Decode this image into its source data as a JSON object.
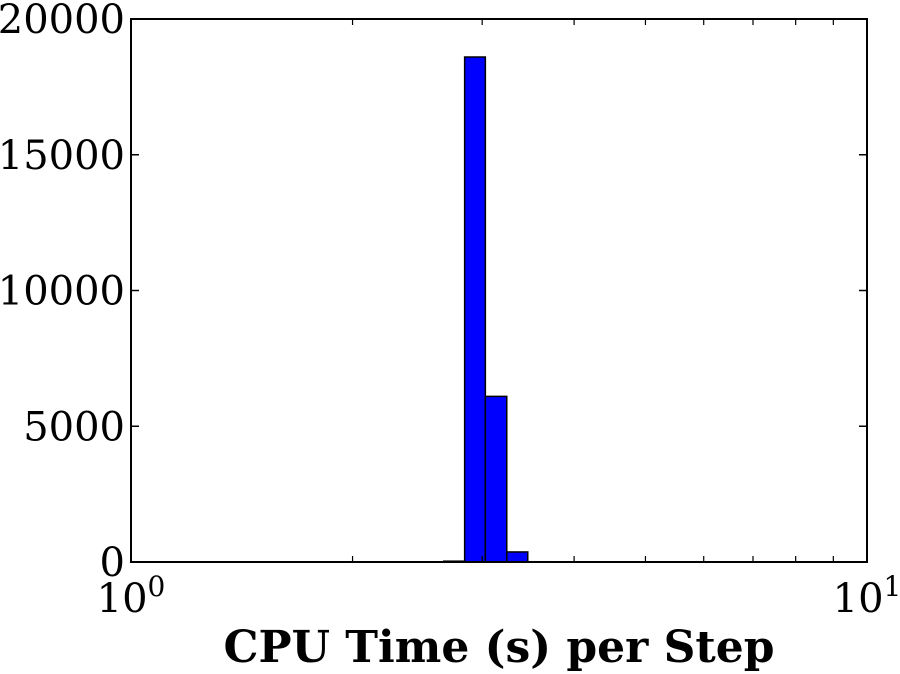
{
  "chart_data": {
    "type": "bar",
    "subtype": "histogram",
    "xlabel": "CPU Time (s) per Step",
    "ylabel": "",
    "x_scale": "log",
    "xlim": [
      1,
      10
    ],
    "ylim": [
      0,
      20000
    ],
    "bar_color": "#0000ff",
    "edge_color": "#000000",
    "grid": false,
    "bins": [
      {
        "x0": 2.66,
        "x1": 2.84,
        "count": 30
      },
      {
        "x0": 2.84,
        "x1": 3.03,
        "count": 18600
      },
      {
        "x0": 3.03,
        "x1": 3.24,
        "count": 6100
      },
      {
        "x0": 3.24,
        "x1": 3.46,
        "count": 370
      },
      {
        "x0": 3.46,
        "x1": 3.7,
        "count": 10
      }
    ],
    "y_ticks": [
      {
        "value": 0,
        "label": "0"
      },
      {
        "value": 5000,
        "label": "5000"
      },
      {
        "value": 10000,
        "label": "10000"
      },
      {
        "value": 15000,
        "label": "15000"
      },
      {
        "value": 20000,
        "label": "20000"
      }
    ],
    "x_ticks": [
      {
        "value": 1,
        "base": "10",
        "exp": "0"
      },
      {
        "value": 10,
        "base": "10",
        "exp": "1"
      }
    ]
  }
}
